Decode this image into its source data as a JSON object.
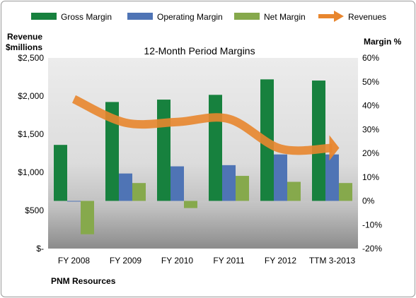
{
  "chart_data": {
    "type": "bar",
    "title": "12-Month Period Margins",
    "left_axis_title_lines": [
      "Revenue",
      "$millions"
    ],
    "right_axis_title": "Margin %",
    "source_label": "PNM Resources",
    "categories": [
      "FY 2008",
      "FY 2009",
      "FY 2010",
      "FY 2011",
      "FY 2012",
      "TTM 3-2013"
    ],
    "left_ticks": [
      "$2,500",
      "$2,000",
      "$1,500",
      "$1,000",
      "$500",
      "$-"
    ],
    "right_ticks": [
      "60%",
      "50%",
      "40%",
      "30%",
      "20%",
      "10%",
      "0%",
      "-10%",
      "-20%"
    ],
    "ylim_left": [
      0,
      2500
    ],
    "ylim_right": [
      -20,
      60
    ],
    "grid": false,
    "legend_position": "top",
    "series": [
      {
        "name": "Gross Margin",
        "kind": "bar",
        "axis": "right",
        "color": "#17813e",
        "values": [
          23.5,
          41.5,
          42.5,
          44.5,
          51,
          50.5
        ]
      },
      {
        "name": "Operating Margin",
        "kind": "bar",
        "axis": "right",
        "color": "#4f74b5",
        "values": [
          0,
          11.5,
          14.5,
          15,
          19.5,
          19.5
        ]
      },
      {
        "name": "Net Margin",
        "kind": "bar",
        "axis": "right",
        "color": "#86a94c",
        "values": [
          -14,
          7.5,
          -3,
          10.5,
          8,
          7.5
        ]
      },
      {
        "name": "Revenues",
        "kind": "line",
        "axis": "left",
        "color": "#e8862e",
        "values": [
          1960,
          1650,
          1660,
          1700,
          1310,
          1320
        ]
      }
    ]
  }
}
